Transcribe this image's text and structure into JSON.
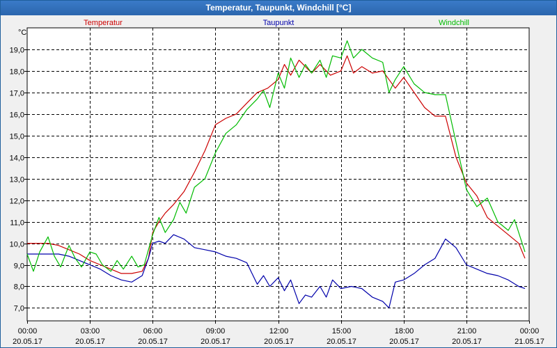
{
  "window": {
    "title": "Temperatur, Taupunkt, Windchill [°C]"
  },
  "colors": {
    "temperatur": "#cc0000",
    "taupunkt": "#0000aa",
    "windchill": "#00bb00",
    "grid": "#000000"
  },
  "chart_data": {
    "type": "line",
    "title": "Temperatur, Taupunkt, Windchill [°C]",
    "ylabel": "°C",
    "xlabel": "",
    "ylim": [
      6.4,
      20.0
    ],
    "xlim": [
      0,
      24
    ],
    "grid": true,
    "yticks": [
      7.0,
      8.0,
      9.0,
      10.0,
      11.0,
      12.0,
      13.0,
      14.0,
      15.0,
      16.0,
      17.0,
      18.0,
      19.0
    ],
    "ytick_labels": [
      "7,0",
      "8,0",
      "9,0",
      "10,0",
      "11,0",
      "12,0",
      "13,0",
      "14,0",
      "15,0",
      "16,0",
      "17,0",
      "18,0",
      "19,0"
    ],
    "xticks": [
      {
        "hour": 0,
        "time": "00:00",
        "date": "20.05.17"
      },
      {
        "hour": 3,
        "time": "03:00",
        "date": "20.05.17"
      },
      {
        "hour": 6,
        "time": "06:00",
        "date": "20.05.17"
      },
      {
        "hour": 9,
        "time": "09:00",
        "date": "20.05.17"
      },
      {
        "hour": 12,
        "time": "12:00",
        "date": "20.05.17"
      },
      {
        "hour": 15,
        "time": "15:00",
        "date": "20.05.17"
      },
      {
        "hour": 18,
        "time": "18:00",
        "date": "20.05.17"
      },
      {
        "hour": 21,
        "time": "21:00",
        "date": "20.05.17"
      },
      {
        "hour": 24,
        "time": "00:00",
        "date": "21.05.17"
      }
    ],
    "series": [
      {
        "name": "Temperatur",
        "key": "temperatur",
        "x": [
          0,
          0.5,
          1,
          1.5,
          2,
          2.5,
          3,
          3.5,
          4,
          4.5,
          5,
          5.5,
          5.8,
          6,
          6.3,
          6.6,
          7,
          7.5,
          8,
          8.5,
          9,
          9.5,
          10,
          10.5,
          11,
          11.5,
          12,
          12.3,
          12.6,
          13,
          13.3,
          13.6,
          14,
          14.5,
          15,
          15.3,
          15.6,
          16,
          16.5,
          17,
          17.3,
          17.6,
          18,
          18.5,
          19,
          19.5,
          20,
          20.5,
          21,
          21.5,
          22,
          22.5,
          23,
          23.5,
          23.8
        ],
        "values": [
          10.0,
          10.0,
          10.0,
          9.9,
          9.7,
          9.5,
          9.2,
          9.0,
          8.8,
          8.6,
          8.6,
          8.7,
          9.3,
          10.5,
          11.0,
          11.4,
          11.8,
          12.4,
          13.3,
          14.3,
          15.5,
          15.8,
          16.0,
          16.5,
          17.0,
          17.2,
          17.6,
          18.3,
          17.8,
          18.5,
          18.2,
          17.9,
          18.3,
          17.8,
          18.0,
          18.7,
          17.9,
          18.2,
          17.9,
          18.0,
          17.6,
          17.2,
          17.7,
          17.0,
          16.3,
          15.9,
          15.9,
          14.0,
          12.8,
          12.2,
          11.2,
          10.8,
          10.4,
          10.0,
          9.3
        ],
        "label_position": "top-left"
      },
      {
        "name": "Taupunkt",
        "key": "taupunkt",
        "x": [
          0,
          0.5,
          1,
          1.5,
          2,
          2.5,
          3,
          3.5,
          4,
          4.5,
          5,
          5.5,
          5.8,
          6,
          6.3,
          6.6,
          7,
          7.5,
          8,
          8.5,
          9,
          9.5,
          10,
          10.5,
          11,
          11.3,
          11.6,
          12,
          12.3,
          12.6,
          13,
          13.3,
          13.6,
          14,
          14.3,
          14.6,
          15,
          15.5,
          16,
          16.5,
          17,
          17.3,
          17.6,
          18,
          18.5,
          19,
          19.5,
          20,
          20.5,
          21,
          21.5,
          22,
          22.5,
          23,
          23.5,
          23.8
        ],
        "values": [
          9.5,
          9.5,
          9.5,
          9.5,
          9.4,
          9.2,
          9.0,
          8.8,
          8.5,
          8.3,
          8.2,
          8.5,
          9.3,
          10.0,
          10.1,
          10.0,
          10.4,
          10.2,
          9.8,
          9.7,
          9.6,
          9.4,
          9.3,
          9.1,
          8.1,
          8.5,
          8.0,
          8.4,
          7.8,
          8.3,
          7.2,
          7.6,
          7.5,
          8.0,
          7.5,
          8.3,
          7.9,
          8.0,
          7.9,
          7.5,
          7.3,
          7.0,
          8.2,
          8.3,
          8.6,
          9.0,
          9.3,
          10.2,
          9.8,
          9.0,
          8.8,
          8.6,
          8.5,
          8.3,
          8.0,
          7.9
        ],
        "label_position": "top-center"
      },
      {
        "name": "Windchill",
        "key": "windchill",
        "x": [
          0,
          0.3,
          0.6,
          1,
          1.3,
          1.6,
          2,
          2.3,
          2.6,
          3,
          3.3,
          3.6,
          4,
          4.3,
          4.6,
          5,
          5.3,
          5.6,
          5.8,
          6,
          6.3,
          6.6,
          7,
          7.3,
          7.6,
          8,
          8.5,
          9,
          9.5,
          10,
          10.5,
          11,
          11.3,
          11.6,
          12,
          12.3,
          12.6,
          13,
          13.3,
          13.6,
          14,
          14.3,
          14.6,
          15,
          15.3,
          15.6,
          16,
          16.5,
          17,
          17.3,
          17.6,
          18,
          18.5,
          19,
          19.5,
          20,
          20.5,
          21,
          21.5,
          22,
          22.5,
          23,
          23.3,
          23.6,
          23.8
        ],
        "values": [
          9.5,
          8.7,
          9.6,
          10.3,
          9.4,
          8.9,
          9.9,
          9.3,
          8.9,
          9.6,
          9.5,
          9.0,
          8.7,
          9.2,
          8.8,
          9.4,
          8.9,
          9.0,
          9.7,
          10.4,
          11.2,
          10.5,
          11.1,
          11.9,
          11.4,
          12.6,
          13.0,
          14.2,
          15.1,
          15.5,
          16.2,
          16.7,
          17.1,
          16.3,
          17.9,
          17.2,
          18.6,
          17.7,
          18.3,
          17.9,
          18.5,
          17.7,
          18.7,
          18.6,
          19.4,
          18.6,
          19.0,
          18.6,
          18.4,
          17.0,
          17.6,
          18.2,
          17.4,
          17.0,
          16.9,
          16.9,
          14.7,
          12.5,
          11.7,
          12.1,
          11.0,
          10.6,
          11.1,
          10.2,
          9.6
        ],
        "label_position": "top-right"
      }
    ]
  }
}
